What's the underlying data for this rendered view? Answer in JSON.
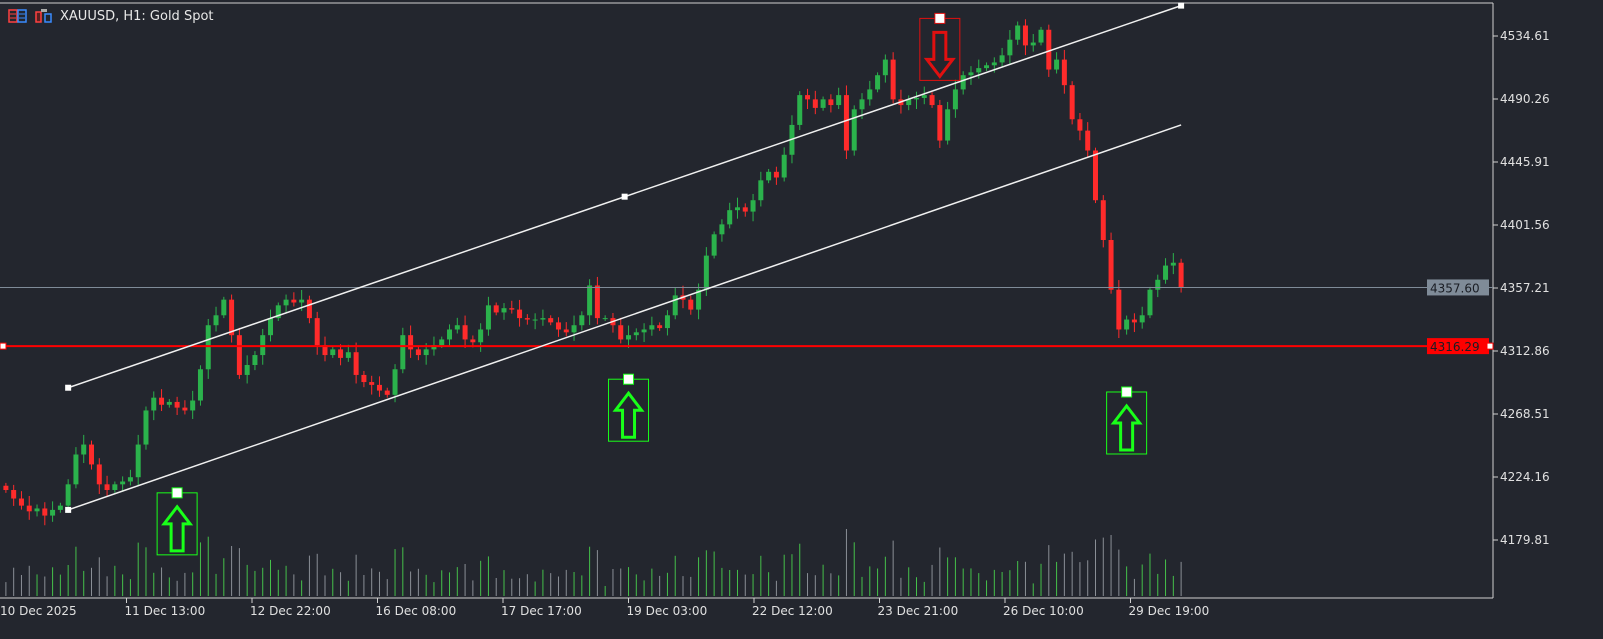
{
  "header": {
    "symbol_title": "XAUUSD, H1:  Gold Spot",
    "icons": [
      "one-click-trading-icon",
      "depth-of-market-icon"
    ]
  },
  "colors": {
    "background": "#23262e",
    "bull": "#2bb24c",
    "bear": "#ff2b2b",
    "channel": "#f0f0f0",
    "support_line": "#ff0000",
    "bid_line": "#7f8b98",
    "buy_arrow": "#19ff19",
    "sell_arrow": "#e01010"
  },
  "chart_data": {
    "type": "candlestick",
    "title": "XAUUSD, H1:  Gold Spot",
    "ylim": [
      4150,
      4560
    ],
    "y_ticks": [
      "4534.61",
      "4490.26",
      "4445.91",
      "4401.56",
      "4357.21",
      "4312.86",
      "4268.51",
      "4224.16",
      "4179.81"
    ],
    "x_ticks": [
      "10 Dec 2025",
      "11 Dec 13:00",
      "12 Dec 22:00",
      "16 Dec 08:00",
      "17 Dec 17:00",
      "19 Dec 03:00",
      "22 Dec 12:00",
      "23 Dec 21:00",
      "26 Dec 10:00",
      "29 Dec 19:00"
    ],
    "grid": false,
    "close": [
      4215,
      4209,
      4204,
      4200,
      4202,
      4197,
      4201,
      4204,
      4219,
      4240,
      4247,
      4233,
      4219,
      4215,
      4219,
      4221,
      4224,
      4247,
      4271,
      4280,
      4275,
      4277,
      4273,
      4271,
      4278,
      4300,
      4331,
      4338,
      4349,
      4324,
      4296,
      4303,
      4310,
      4324,
      4336,
      4345,
      4349,
      4347,
      4349,
      4336,
      4317,
      4310,
      4314,
      4308,
      4312,
      4296,
      4291,
      4289,
      4285,
      4282,
      4300,
      4324,
      4314,
      4310,
      4314,
      4317,
      4321,
      4328,
      4331,
      4321,
      4319,
      4328,
      4345,
      4340,
      4343,
      4342,
      4336,
      4335,
      4335,
      4336,
      4333,
      4328,
      4326,
      4331,
      4338,
      4359,
      4336,
      4336,
      4331,
      4321,
      4324,
      4326,
      4328,
      4331,
      4329,
      4338,
      4352,
      4349,
      4342,
      4356,
      4380,
      4395,
      4402,
      4412,
      4414,
      4411,
      4419,
      4433,
      4439,
      4435,
      4451,
      4472,
      4493,
      4490,
      4484,
      4490,
      4486,
      4493,
      4454,
      4483,
      4490,
      4497,
      4507,
      4518,
      4490,
      4486,
      4490,
      4491,
      4493,
      4486,
      4461,
      4483,
      4497,
      4507,
      4509,
      4512,
      4514,
      4516,
      4521,
      4532,
      4542,
      4528,
      4530,
      4539,
      4511,
      4518,
      4500,
      4476,
      4468,
      4454,
      4419,
      4391,
      4356,
      4328,
      4335,
      4333,
      4338,
      4356,
      4363,
      4373,
      4375,
      4357.6
    ],
    "current_bid": {
      "label": "4357.60",
      "value": 4357.6
    },
    "horizontal_line": {
      "label": "4316.29",
      "value": 4316.29
    },
    "channel": {
      "upper": {
        "from_bar": 8,
        "from_price": 4287,
        "to_bar": 151,
        "to_price": 4556
      },
      "lower": {
        "from_bar": 8,
        "from_price": 4201,
        "to_bar": 151,
        "to_price": 4472
      }
    },
    "signals": [
      {
        "type": "buy",
        "bar": 22,
        "price": 4213
      },
      {
        "type": "buy",
        "bar": 80,
        "price": 4293
      },
      {
        "type": "sell",
        "bar": 120,
        "price": 4547
      },
      {
        "type": "buy",
        "bar": 144,
        "price": 4284
      }
    ]
  }
}
